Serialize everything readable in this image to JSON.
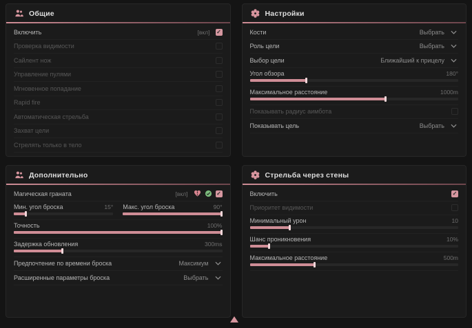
{
  "colors": {
    "accent": "#cf8d96",
    "checkbox_checked": "#d697a0",
    "green_icon": "#7cbb7c",
    "panel_bg": "#1b1b1b"
  },
  "panels": [
    {
      "id": "general",
      "title": "Общие",
      "icon": "users-icon",
      "rows": [
        {
          "type": "toggle",
          "label": "Включить",
          "bind": "[вкл]",
          "checked": true,
          "enabled": true
        },
        {
          "type": "toggle",
          "label": "Проверка видимости",
          "checked": false,
          "enabled": false
        },
        {
          "type": "toggle",
          "label": "Сайлент нож",
          "checked": false,
          "enabled": false
        },
        {
          "type": "toggle",
          "label": "Управление пулями",
          "checked": false,
          "enabled": false
        },
        {
          "type": "toggle",
          "label": "Мгновенное попадание",
          "checked": false,
          "enabled": false
        },
        {
          "type": "toggle",
          "label": "Rapid fire",
          "checked": false,
          "enabled": false
        },
        {
          "type": "toggle",
          "label": "Автоматическая стрельба",
          "checked": false,
          "enabled": false
        },
        {
          "type": "toggle",
          "label": "Захват цели",
          "checked": false,
          "enabled": false
        },
        {
          "type": "toggle",
          "label": "Стрелять только в тело",
          "checked": false,
          "enabled": false
        }
      ]
    },
    {
      "id": "settings",
      "title": "Настройки",
      "icon": "gear-icon",
      "rows": [
        {
          "type": "select",
          "label": "Кости",
          "value": "Выбрать"
        },
        {
          "type": "select",
          "label": "Роль цели",
          "value": "Выбрать"
        },
        {
          "type": "select",
          "label": "Выбор цели",
          "value": "Ближайший к прицелу"
        },
        {
          "type": "slider",
          "label": "Угол обзора",
          "value": "180°",
          "percent": 27
        },
        {
          "type": "slider",
          "label": "Максимальное расстояние",
          "value": "1000m",
          "percent": 65
        },
        {
          "type": "toggle",
          "label": "Показывать радиус аимбота",
          "checked": false,
          "enabled": false
        },
        {
          "type": "select",
          "label": "Показывать цель",
          "value": "Выбрать"
        }
      ]
    },
    {
      "id": "additional",
      "title": "Дополнительно",
      "icon": "users-icon",
      "rows": [
        {
          "type": "toggle",
          "label": "Магическая граната",
          "bind": "[вкл]",
          "checked": true,
          "enabled": true,
          "extra_icons": [
            "broken-heart-icon",
            "check-circle-icon"
          ]
        },
        {
          "type": "dual-slider",
          "items": [
            {
              "label": "Мин. угол броска",
              "value": "15°",
              "percent": 12
            },
            {
              "label": "Макс. угол броска",
              "value": "90°",
              "percent": 100
            }
          ]
        },
        {
          "type": "slider",
          "label": "Точность",
          "value": "100%",
          "percent": 100
        },
        {
          "type": "slider",
          "label": "Задержка обновления",
          "value": "300ms",
          "percent": 23
        },
        {
          "type": "select",
          "label": "Предпочтение по времени броска",
          "value": "Максимум"
        },
        {
          "type": "select",
          "label": "Расширенные параметры броска",
          "value": "Выбрать"
        }
      ]
    },
    {
      "id": "wallbang",
      "title": "Стрельба через стены",
      "icon": "gear-icon",
      "rows": [
        {
          "type": "toggle",
          "label": "Включить",
          "checked": true,
          "enabled": true
        },
        {
          "type": "toggle",
          "label": "Приоритет видимости",
          "checked": false,
          "enabled": false
        },
        {
          "type": "slider",
          "label": "Минимальный урон",
          "value": "10",
          "percent": 19
        },
        {
          "type": "slider",
          "label": "Шанс проникновения",
          "value": "10%",
          "percent": 9
        },
        {
          "type": "slider",
          "label": "Максимальное расстояние",
          "value": "500m",
          "percent": 31
        }
      ]
    }
  ],
  "pointer_icon": "cursor-up"
}
